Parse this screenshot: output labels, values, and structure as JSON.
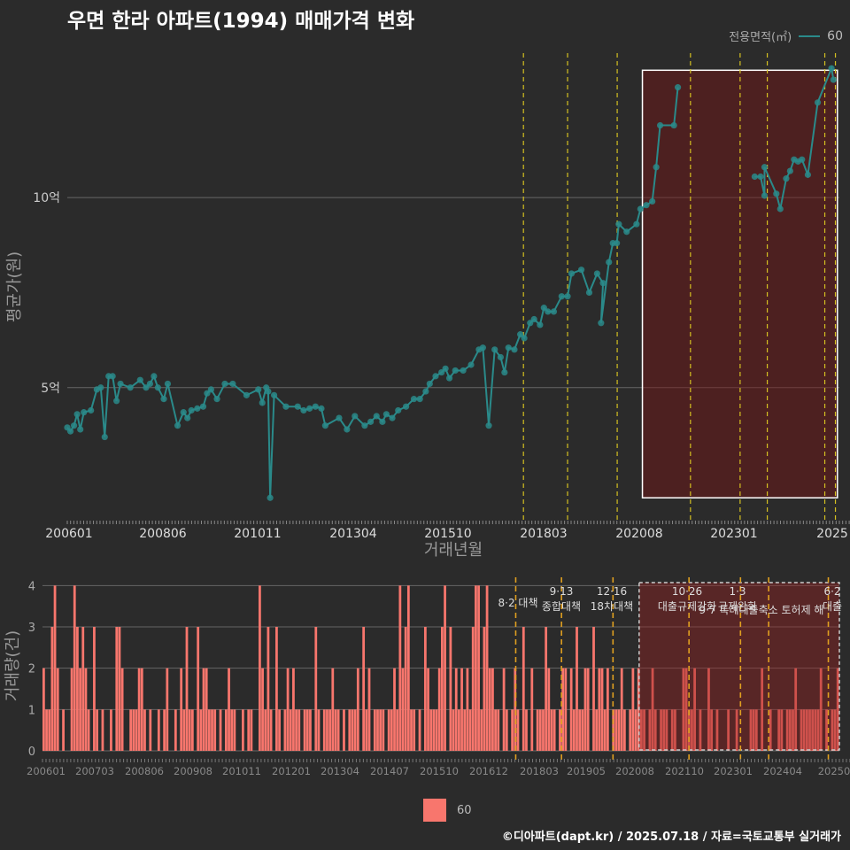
{
  "title": "우면 한라 아파트(1994) 매매가격 변화",
  "legend": {
    "label": "전용면적(㎡)",
    "series_name": "60",
    "line_color": "#2a8a8a",
    "bar_color": "#f8766d"
  },
  "credit": "©디아파트(dapt.kr) / 2025.07.18 / 자료=국토교통부 실거래가",
  "chart_data": [
    {
      "type": "line",
      "title": "우면 한라 아파트(1994) 매매가격 변화",
      "xlabel": "거래년월",
      "ylabel": "평균가(원)",
      "x_tick_labels": [
        "200601",
        "200806",
        "201011",
        "201304",
        "201510",
        "201803",
        "202008",
        "202301",
        "2025"
      ],
      "y_ticks": [
        {
          "value": 5,
          "label": "5억"
        },
        {
          "value": 10,
          "label": "10억"
        }
      ],
      "ylim": [
        1.5,
        13.8
      ],
      "xlim": [
        2006.0,
        2025.6
      ],
      "series": [
        {
          "name": "60",
          "color": "#2a8a8a",
          "points": [
            [
              2006.0,
              3.95
            ],
            [
              2006.08,
              3.85
            ],
            [
              2006.17,
              4.0
            ],
            [
              2006.25,
              4.3
            ],
            [
              2006.33,
              3.9
            ],
            [
              2006.42,
              4.35
            ],
            [
              2006.6,
              4.4
            ],
            [
              2006.75,
              4.95
            ],
            [
              2006.85,
              5.0
            ],
            [
              2006.95,
              3.7
            ],
            [
              2007.05,
              5.3
            ],
            [
              2007.15,
              5.3
            ],
            [
              2007.25,
              4.65
            ],
            [
              2007.35,
              5.1
            ],
            [
              2007.6,
              5.0
            ],
            [
              2007.85,
              5.2
            ],
            [
              2008.0,
              5.0
            ],
            [
              2008.1,
              5.1
            ],
            [
              2008.2,
              5.3
            ],
            [
              2008.3,
              5.0
            ],
            [
              2008.45,
              4.7
            ],
            [
              2008.55,
              5.1
            ],
            [
              2008.8,
              4.0
            ],
            [
              2008.95,
              4.35
            ],
            [
              2009.05,
              4.2
            ],
            [
              2009.15,
              4.4
            ],
            [
              2009.3,
              4.45
            ],
            [
              2009.45,
              4.5
            ],
            [
              2009.55,
              4.85
            ],
            [
              2009.65,
              4.95
            ],
            [
              2009.8,
              4.7
            ],
            [
              2010.0,
              5.1
            ],
            [
              2010.2,
              5.1
            ],
            [
              2010.55,
              4.8
            ],
            [
              2010.85,
              4.95
            ],
            [
              2010.95,
              4.6
            ],
            [
              2011.05,
              5.0
            ],
            [
              2011.1,
              4.9
            ],
            [
              2011.15,
              2.1
            ],
            [
              2011.25,
              4.8
            ],
            [
              2011.55,
              4.5
            ],
            [
              2011.85,
              4.5
            ],
            [
              2012.0,
              4.4
            ],
            [
              2012.15,
              4.45
            ],
            [
              2012.3,
              4.5
            ],
            [
              2012.45,
              4.45
            ],
            [
              2012.55,
              4.0
            ],
            [
              2012.9,
              4.2
            ],
            [
              2013.1,
              3.9
            ],
            [
              2013.3,
              4.25
            ],
            [
              2013.55,
              4.0
            ],
            [
              2013.7,
              4.1
            ],
            [
              2013.85,
              4.25
            ],
            [
              2014.0,
              4.1
            ],
            [
              2014.1,
              4.3
            ],
            [
              2014.25,
              4.2
            ],
            [
              2014.4,
              4.4
            ],
            [
              2014.6,
              4.5
            ],
            [
              2014.8,
              4.7
            ],
            [
              2014.95,
              4.7
            ],
            [
              2015.1,
              4.9
            ],
            [
              2015.2,
              5.1
            ],
            [
              2015.35,
              5.3
            ],
            [
              2015.5,
              5.4
            ],
            [
              2015.6,
              5.5
            ],
            [
              2015.7,
              5.25
            ],
            [
              2015.85,
              5.45
            ],
            [
              2016.05,
              5.45
            ],
            [
              2016.25,
              5.6
            ],
            [
              2016.45,
              6.0
            ],
            [
              2016.55,
              6.05
            ],
            [
              2016.7,
              4.0
            ],
            [
              2016.85,
              6.0
            ],
            [
              2017.0,
              5.8
            ],
            [
              2017.1,
              5.4
            ],
            [
              2017.2,
              6.05
            ],
            [
              2017.35,
              6.0
            ],
            [
              2017.5,
              6.4
            ],
            [
              2017.6,
              6.3
            ],
            [
              2017.75,
              6.7
            ],
            [
              2017.85,
              6.8
            ],
            [
              2018.0,
              6.65
            ],
            [
              2018.1,
              7.1
            ],
            [
              2018.2,
              7.0
            ],
            [
              2018.35,
              7.0
            ],
            [
              2018.55,
              7.4
            ],
            [
              2018.7,
              7.4
            ],
            [
              2018.8,
              8.0
            ],
            [
              2019.05,
              8.1
            ],
            [
              2019.25,
              7.5
            ],
            [
              2019.45,
              8.0
            ],
            [
              2019.6,
              7.75
            ],
            [
              2019.55,
              6.7
            ],
            [
              2019.75,
              8.3
            ],
            [
              2019.85,
              8.8
            ],
            [
              2019.95,
              8.8
            ],
            [
              2020.0,
              9.3
            ],
            [
              2020.2,
              9.1
            ],
            [
              2020.45,
              9.3
            ],
            [
              2020.55,
              9.7
            ],
            [
              2020.7,
              9.8
            ],
            [
              2020.85,
              9.9
            ],
            [
              2020.95,
              10.8
            ],
            [
              2021.05,
              11.9
            ],
            [
              2021.4,
              11.9
            ],
            [
              2021.5,
              12.9
            ]
          ],
          "points_late": [
            [
              2023.45,
              10.55
            ],
            [
              2023.6,
              10.55
            ],
            [
              2023.7,
              10.05
            ],
            [
              2023.7,
              10.8
            ],
            [
              2024.0,
              10.1
            ],
            [
              2024.1,
              9.7
            ],
            [
              2024.25,
              10.5
            ],
            [
              2024.35,
              10.7
            ],
            [
              2024.45,
              11.0
            ],
            [
              2024.55,
              10.95
            ],
            [
              2024.65,
              11.0
            ],
            [
              2024.8,
              10.6
            ],
            [
              2025.05,
              12.5
            ],
            [
              2025.4,
              13.4
            ],
            [
              2025.45,
              13.1
            ]
          ]
        }
      ],
      "vlines": [
        2017.58,
        2018.7,
        2019.96,
        2021.82,
        2023.08,
        2023.77,
        2025.23,
        2025.5
      ],
      "highlight_range": [
        2020.6,
        2025.55
      ],
      "legend": {
        "title": "전용면적(㎡)",
        "entries": [
          "60"
        ],
        "position": "top-right"
      }
    },
    {
      "type": "bar",
      "xlabel": "",
      "ylabel": "거래량(건)",
      "ylim": [
        0,
        4.2
      ],
      "y_ticks": [
        0,
        1,
        2,
        3,
        4
      ],
      "x_tick_labels": [
        "200601",
        "200703",
        "200806",
        "200908",
        "201011",
        "201201",
        "201304",
        "201407",
        "201510",
        "201612",
        "201803",
        "201905",
        "202008",
        "202110",
        "202301",
        "202404",
        "20250"
      ],
      "annotations": [
        {
          "x": 2017.58,
          "label": "8·2 대책"
        },
        {
          "x": 2018.7,
          "label": "9·13 종합대책"
        },
        {
          "x": 2019.96,
          "label": "12·16 18차대책"
        },
        {
          "x": 2021.82,
          "label": "10·26 대출규제강화"
        },
        {
          "x": 2023.08,
          "label": "1·3 규제완화"
        },
        {
          "x": 2023.77,
          "label": "9·7 특례대출축소 토허제 해"
        },
        {
          "x": 2025.23,
          "label": "6·2 대출"
        }
      ],
      "series": [
        {
          "name": "60",
          "color": "#f8766d",
          "values": [
            2,
            1,
            1,
            3,
            4,
            2,
            0,
            1,
            0,
            0,
            2,
            4,
            3,
            2,
            3,
            2,
            1,
            0,
            3,
            1,
            0,
            1,
            0,
            0,
            1,
            0,
            3,
            3,
            2,
            0,
            0,
            1,
            1,
            1,
            2,
            2,
            1,
            0,
            1,
            0,
            0,
            1,
            0,
            1,
            2,
            0,
            0,
            1,
            0,
            2,
            1,
            3,
            1,
            1,
            0,
            3,
            1,
            2,
            2,
            1,
            1,
            1,
            0,
            1,
            0,
            1,
            2,
            1,
            1,
            0,
            0,
            1,
            0,
            1,
            1,
            0,
            0,
            4,
            2,
            1,
            3,
            1,
            0,
            3,
            1,
            0,
            1,
            2,
            1,
            2,
            1,
            1,
            0,
            1,
            1,
            1,
            0,
            3,
            1,
            0,
            1,
            1,
            1,
            2,
            1,
            1,
            0,
            1,
            0,
            1,
            1,
            1,
            2,
            0,
            3,
            1,
            2,
            0,
            1,
            1,
            1,
            1,
            0,
            1,
            1,
            2,
            1,
            4,
            2,
            3,
            4,
            1,
            1,
            0,
            1,
            0,
            3,
            2,
            1,
            1,
            1,
            2,
            3,
            4,
            0,
            3,
            1,
            2,
            1,
            2,
            1,
            2,
            1,
            3,
            4,
            4,
            1,
            3,
            4,
            2,
            2,
            1,
            1,
            0,
            2,
            1,
            0,
            1,
            2,
            1,
            0,
            3,
            1,
            0,
            2,
            0,
            1,
            1,
            1,
            3,
            2,
            1,
            1,
            0,
            1,
            2,
            2,
            0,
            2,
            1,
            3,
            1,
            1,
            2,
            2,
            0,
            3,
            1,
            2,
            2,
            1,
            2,
            0,
            1,
            1,
            1,
            2,
            1,
            0,
            1,
            2,
            1,
            2,
            1,
            1,
            0,
            1,
            2,
            1,
            0,
            1,
            1,
            1,
            0,
            1,
            1,
            0,
            0,
            2,
            2,
            1,
            1,
            2,
            0,
            1,
            0,
            0,
            2,
            1,
            0,
            1,
            0,
            0,
            0,
            1,
            0,
            0,
            1,
            0,
            0,
            0,
            0,
            1,
            1,
            1,
            0,
            2,
            0,
            0,
            1,
            0,
            0,
            1,
            1,
            0,
            1,
            1,
            1,
            2,
            0,
            1,
            1,
            1,
            1,
            1,
            1,
            1,
            2,
            0,
            1,
            0,
            1,
            1,
            2
          ],
          "range": [
            2006.0,
            2025.5
          ]
        }
      ]
    }
  ]
}
